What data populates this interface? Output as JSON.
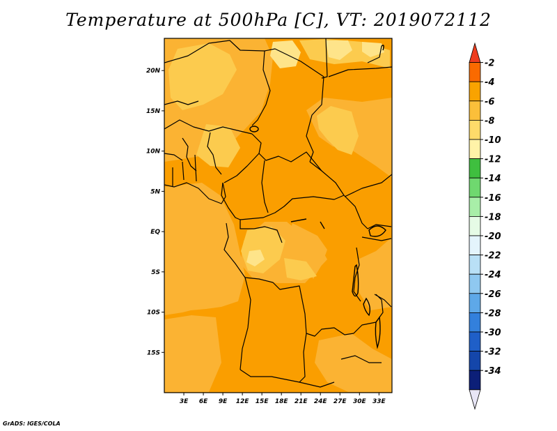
{
  "title": "Temperature at 500hPa [C], VT: 2019072112",
  "credit": "GrADS: IGES/COLA",
  "map": {
    "variable": "Temperature at 500hPa",
    "units": "C",
    "valid_time": "2019072112",
    "lon_range": [
      0,
      35
    ],
    "lat_range": [
      -20,
      24
    ],
    "lat_ticks": [
      {
        "value": 20,
        "label": "20N"
      },
      {
        "value": 15,
        "label": "15N"
      },
      {
        "value": 10,
        "label": "10N"
      },
      {
        "value": 5,
        "label": "5N"
      },
      {
        "value": 0,
        "label": "EQ"
      },
      {
        "value": -5,
        "label": "5S"
      },
      {
        "value": -10,
        "label": "10S"
      },
      {
        "value": -15,
        "label": "15S"
      }
    ],
    "lon_ticks": [
      {
        "value": 3,
        "label": "3E"
      },
      {
        "value": 6,
        "label": "6E"
      },
      {
        "value": 9,
        "label": "9E"
      },
      {
        "value": 12,
        "label": "12E"
      },
      {
        "value": 15,
        "label": "15E"
      },
      {
        "value": 18,
        "label": "18E"
      },
      {
        "value": 21,
        "label": "21E"
      },
      {
        "value": 24,
        "label": "24E"
      },
      {
        "value": 27,
        "label": "27E"
      },
      {
        "value": 30,
        "label": "30E"
      },
      {
        "value": 33,
        "label": "33E"
      }
    ]
  },
  "colorbar": {
    "labels": [
      "-2",
      "-4",
      "-6",
      "-8",
      "-10",
      "-12",
      "-14",
      "-16",
      "-18",
      "-20",
      "-22",
      "-24",
      "-26",
      "-28",
      "-30",
      "-32",
      "-34"
    ],
    "colors": [
      "#ee3d1f",
      "#fa6a00",
      "#f9a300",
      "#fbbf3a",
      "#fedb6a",
      "#fff3a8",
      "#3fbf3f",
      "#6fd86f",
      "#a8eea8",
      "#e6fbe6",
      "#e4f4fc",
      "#b9e0f6",
      "#8fc8f0",
      "#5ea8e8",
      "#3380dc",
      "#1f5fc8",
      "#1446aa",
      "#0c1f78",
      "#e8e6f6"
    ]
  },
  "palette": {
    "c_minus4": "#fa9e00",
    "c_minus6": "#fbb333",
    "c_minus8": "#fccb4e",
    "c_minus10": "#fee48a",
    "border": "#000000"
  }
}
